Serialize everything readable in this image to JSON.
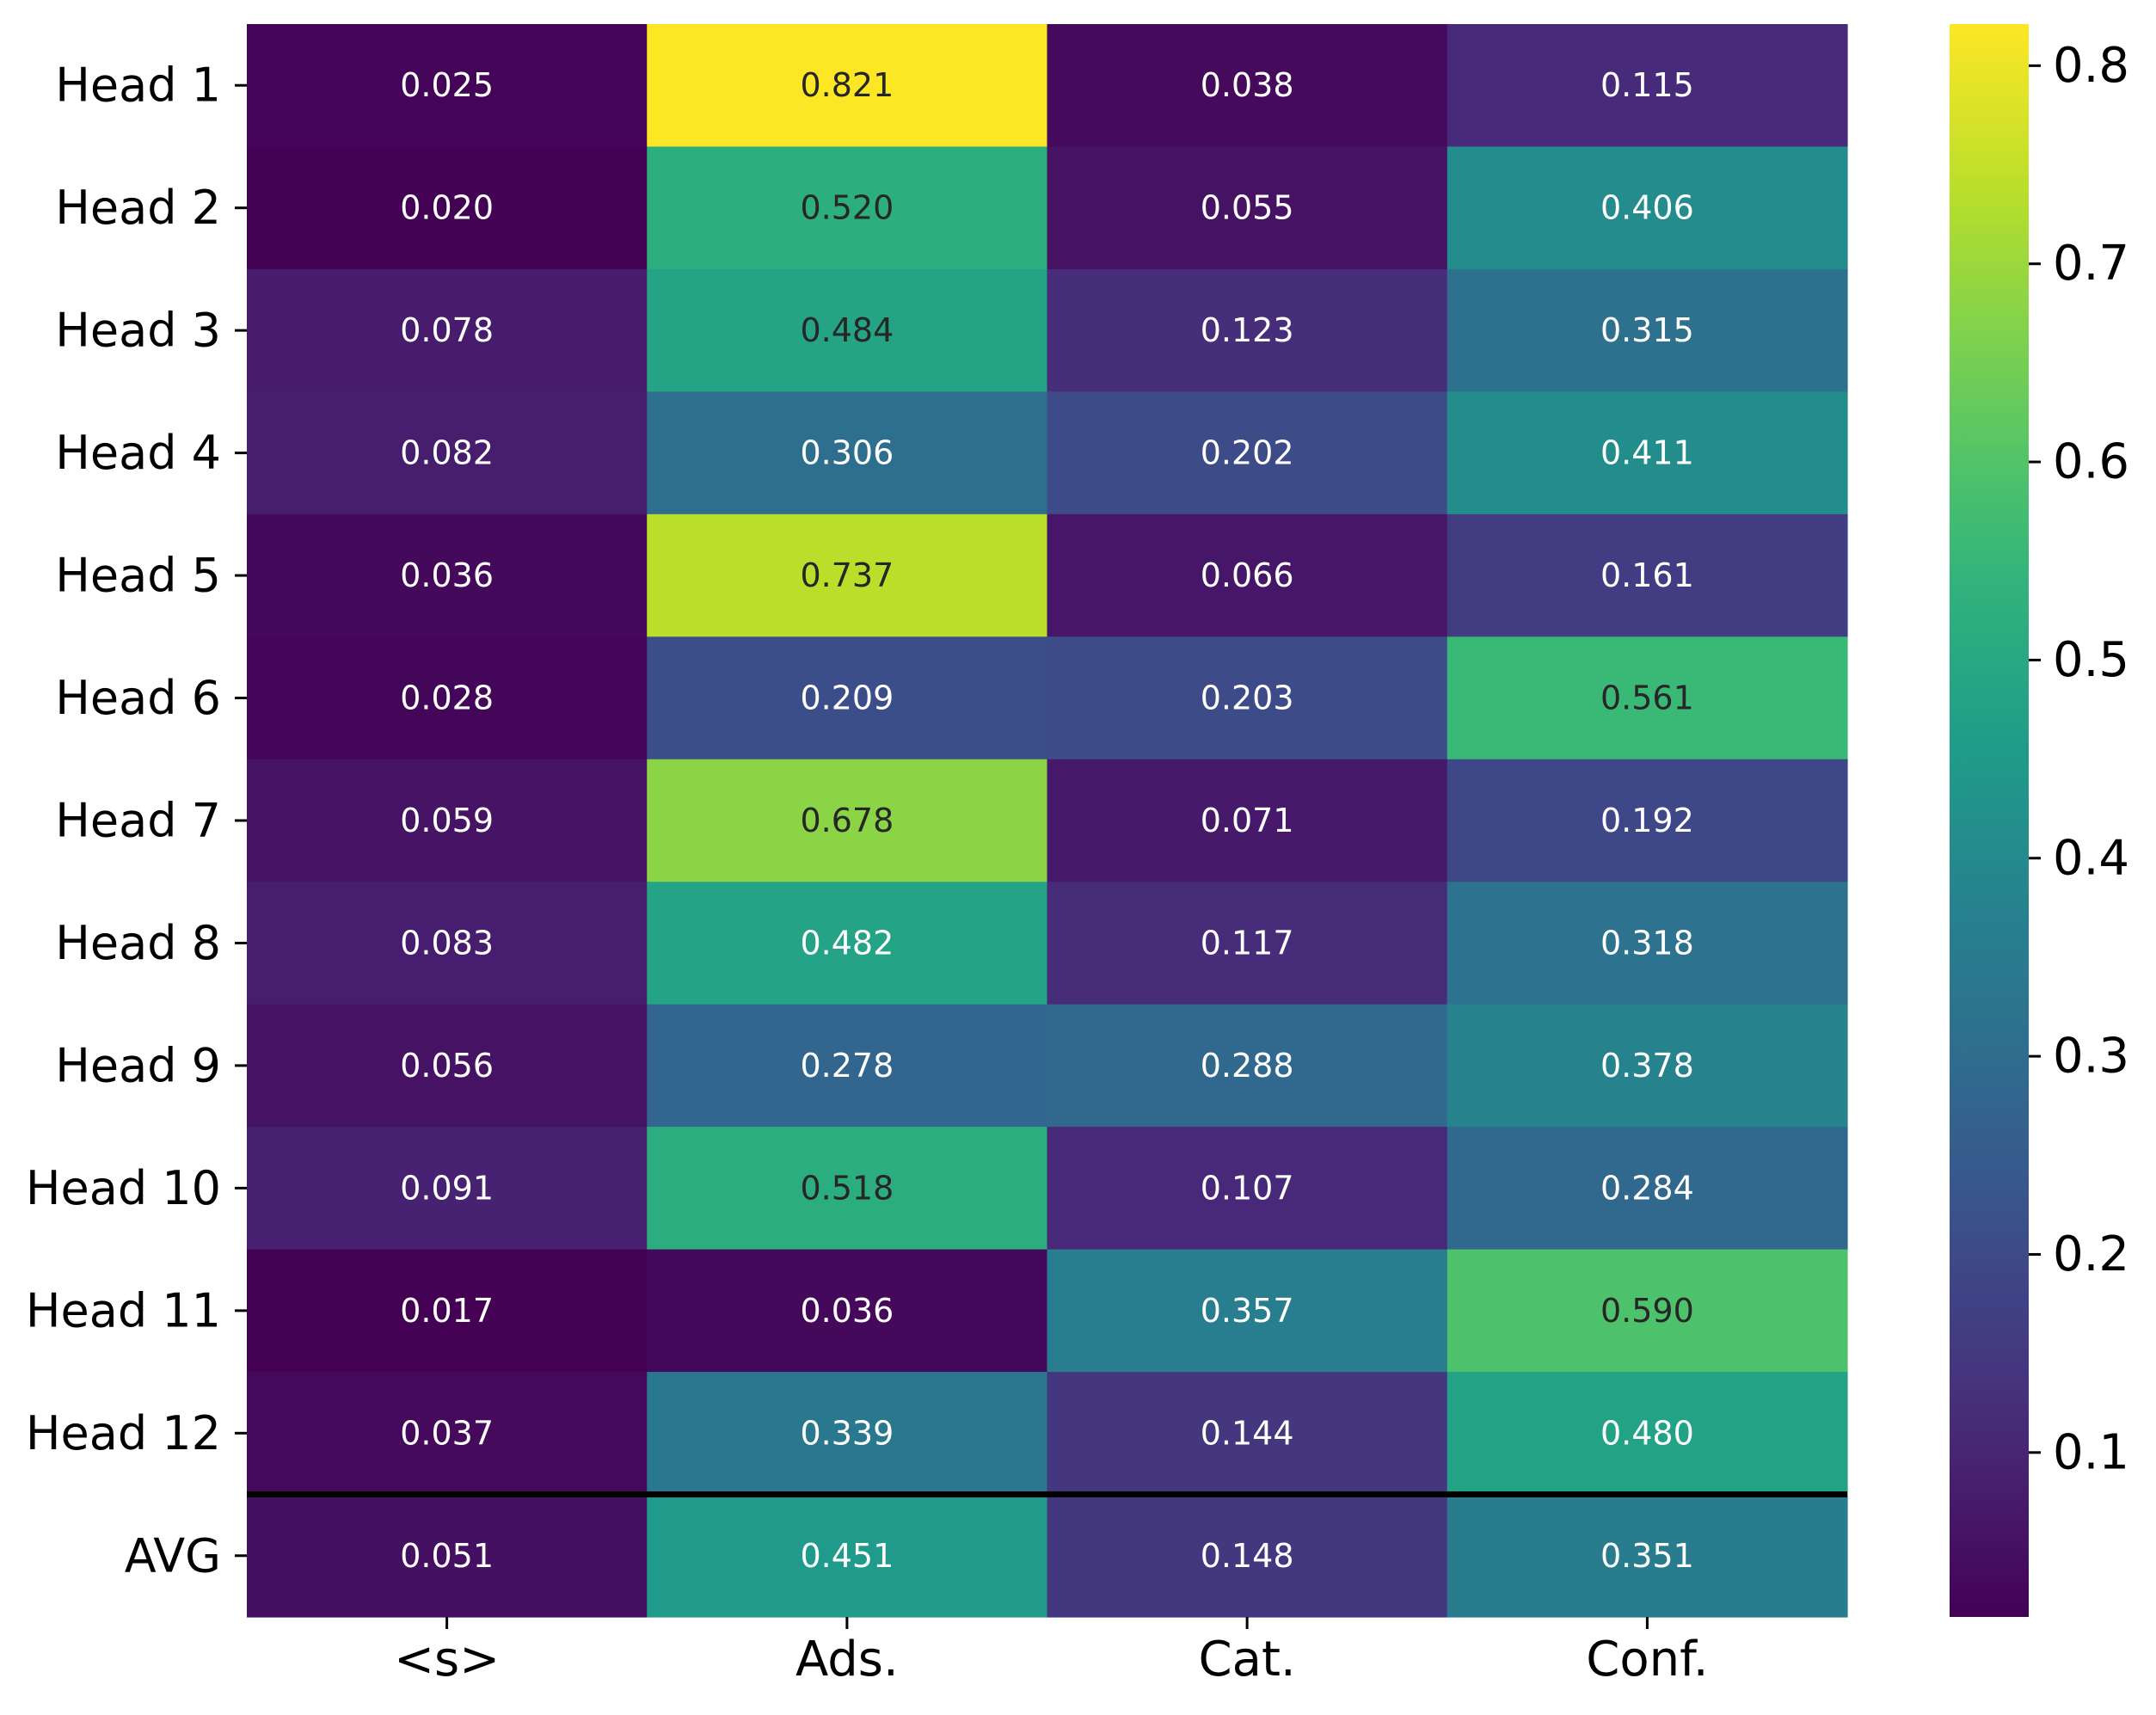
{
  "chart_data": {
    "type": "heatmap",
    "title": "",
    "xlabel": "",
    "ylabel": "",
    "colormap": "viridis",
    "x_categories": [
      "<s>",
      "Ads.",
      "Cat.",
      "Conf."
    ],
    "y_categories": [
      "Head 1",
      "Head 2",
      "Head 3",
      "Head 4",
      "Head 5",
      "Head 6",
      "Head 7",
      "Head 8",
      "Head 9",
      "Head 10",
      "Head 11",
      "Head 12",
      "AVG"
    ],
    "values": [
      [
        0.025,
        0.821,
        0.038,
        0.115
      ],
      [
        0.02,
        0.52,
        0.055,
        0.406
      ],
      [
        0.078,
        0.484,
        0.123,
        0.315
      ],
      [
        0.082,
        0.306,
        0.202,
        0.411
      ],
      [
        0.036,
        0.737,
        0.066,
        0.161
      ],
      [
        0.028,
        0.209,
        0.203,
        0.561
      ],
      [
        0.059,
        0.678,
        0.071,
        0.192
      ],
      [
        0.083,
        0.482,
        0.117,
        0.318
      ],
      [
        0.056,
        0.278,
        0.288,
        0.378
      ],
      [
        0.091,
        0.518,
        0.107,
        0.284
      ],
      [
        0.017,
        0.036,
        0.357,
        0.59
      ],
      [
        0.037,
        0.339,
        0.144,
        0.48
      ],
      [
        0.051,
        0.451,
        0.148,
        0.351
      ]
    ],
    "value_labels": [
      [
        "0.025",
        "0.821",
        "0.038",
        "0.115"
      ],
      [
        "0.020",
        "0.520",
        "0.055",
        "0.406"
      ],
      [
        "0.078",
        "0.484",
        "0.123",
        "0.315"
      ],
      [
        "0.082",
        "0.306",
        "0.202",
        "0.411"
      ],
      [
        "0.036",
        "0.737",
        "0.066",
        "0.161"
      ],
      [
        "0.028",
        "0.209",
        "0.203",
        "0.561"
      ],
      [
        "0.059",
        "0.678",
        "0.071",
        "0.192"
      ],
      [
        "0.083",
        "0.482",
        "0.117",
        "0.318"
      ],
      [
        "0.056",
        "0.278",
        "0.288",
        "0.378"
      ],
      [
        "0.091",
        "0.518",
        "0.107",
        "0.284"
      ],
      [
        "0.017",
        "0.036",
        "0.357",
        "0.590"
      ],
      [
        "0.037",
        "0.339",
        "0.144",
        "0.480"
      ],
      [
        "0.051",
        "0.451",
        "0.148",
        "0.351"
      ]
    ],
    "separator_before_row": 12,
    "colorbar": {
      "range": [
        0.017,
        0.821
      ],
      "ticks": [
        0.1,
        0.2,
        0.3,
        0.4,
        0.5,
        0.6,
        0.7,
        0.8
      ],
      "tick_labels": [
        "0.1",
        "0.2",
        "0.3",
        "0.4",
        "0.5",
        "0.6",
        "0.7",
        "0.8"
      ]
    },
    "dark_text_threshold": 0.58,
    "colors": {
      "light_text": "#ffffff",
      "dark_text": "#262626",
      "axis": "#000000",
      "separator": "#000000"
    }
  }
}
